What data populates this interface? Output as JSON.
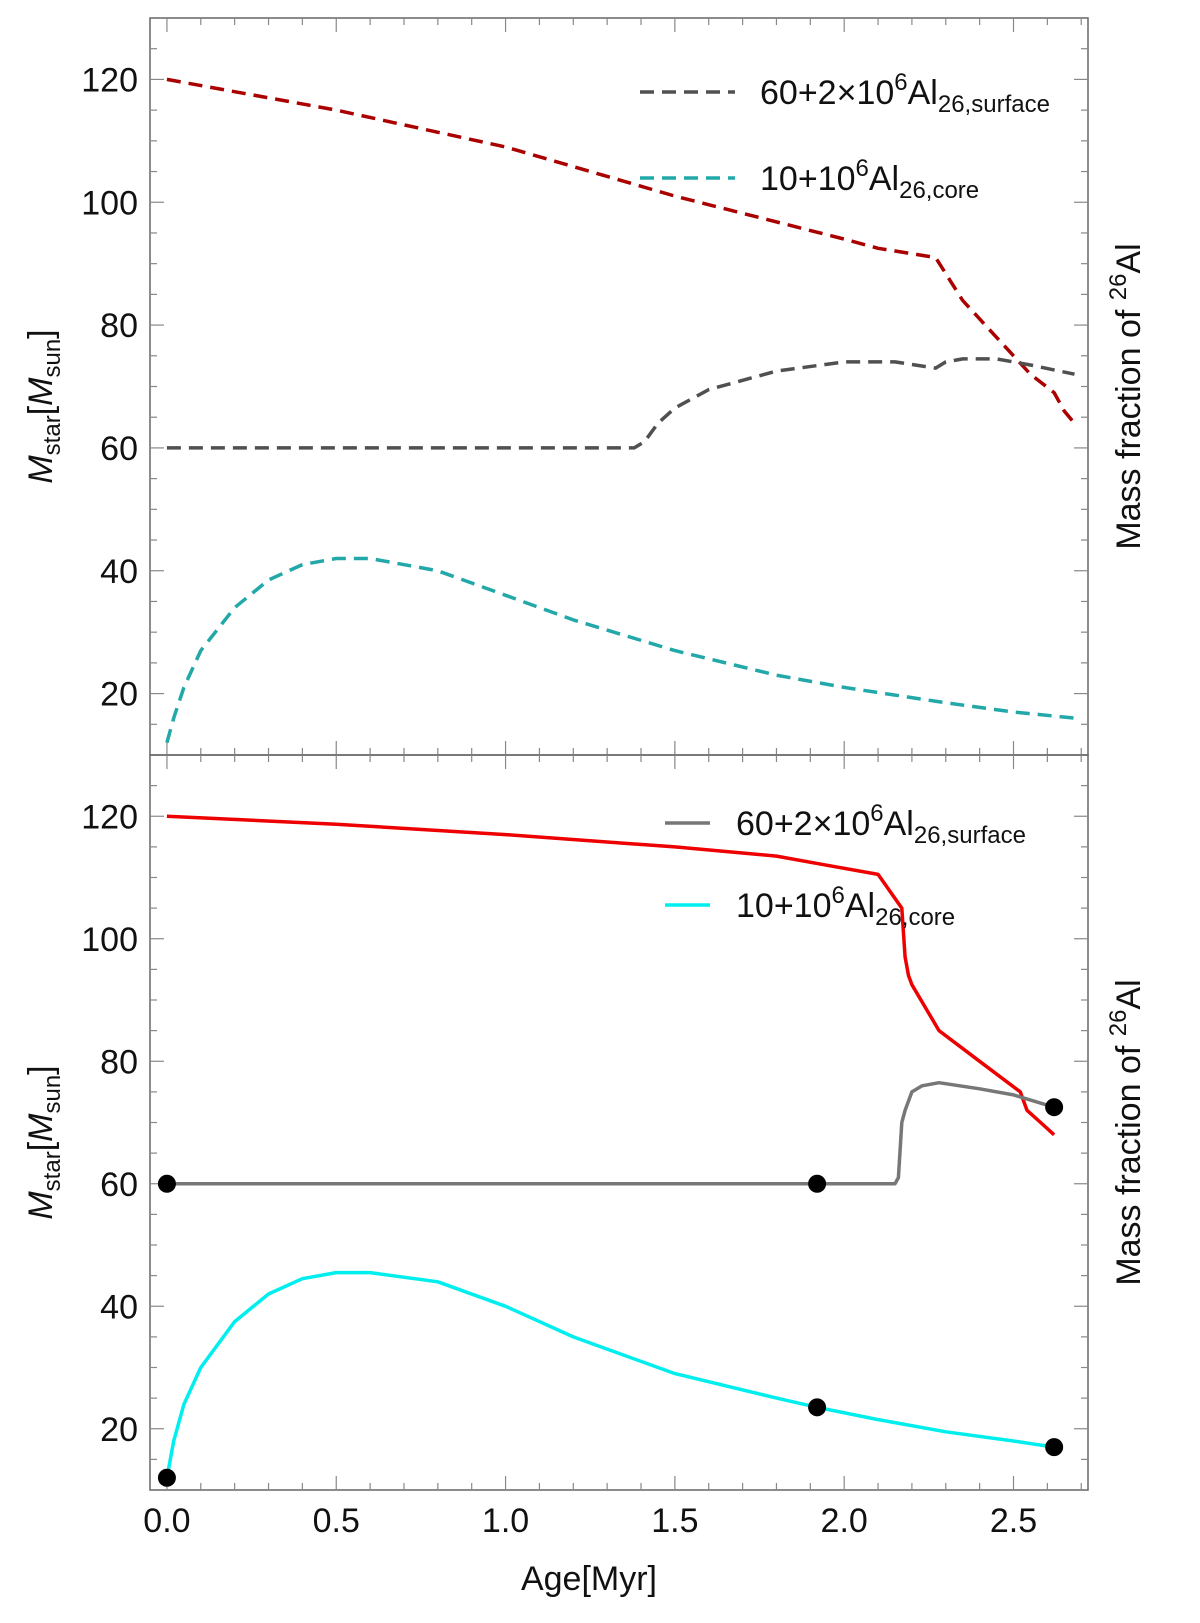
{
  "chart_data": [
    {
      "type": "line",
      "panel": "top",
      "line_style": "dashed",
      "xlabel": "Age[Myr]",
      "ylabel": {
        "base": "M",
        "sub": "star",
        "open": "[",
        "unit": "M",
        "unit_sub": "sun",
        "close": "]"
      },
      "right_label": {
        "pre": "Mass fraction of ",
        "sup": "26",
        "post": "Al"
      },
      "xlim": [
        -0.05,
        2.72
      ],
      "ylim": [
        10,
        130
      ],
      "yticks": [
        20,
        40,
        60,
        80,
        100,
        120
      ],
      "ytick_labels": [
        "20",
        "40",
        "60",
        "80",
        "100",
        "120"
      ],
      "legend": [
        {
          "series": "surface",
          "pre": "60+2×10",
          "sup": "6",
          "mid": "Al",
          "sub": "26,surface"
        },
        {
          "series": "core",
          "pre": "10+10",
          "sup": "6",
          "mid": "Al",
          "sub": "26,core"
        }
      ],
      "series": [
        {
          "name": "mass",
          "color": "#aa0000",
          "x": [
            0.0,
            0.5,
            1.0,
            1.5,
            2.0,
            2.1,
            2.27,
            2.35,
            2.45,
            2.55,
            2.62,
            2.65,
            2.68
          ],
          "y": [
            120,
            115,
            109,
            101,
            94,
            92.5,
            91,
            84,
            78,
            72,
            69,
            66,
            64
          ]
        },
        {
          "name": "surface",
          "color": "#505050",
          "x": [
            0.0,
            1.38,
            1.41,
            1.45,
            1.5,
            1.6,
            1.8,
            2.0,
            2.15,
            2.27,
            2.3,
            2.35,
            2.45,
            2.55,
            2.68
          ],
          "y": [
            60,
            60,
            61,
            64,
            66.5,
            69.5,
            72.5,
            74,
            74,
            73,
            74,
            74.5,
            74.5,
            73.5,
            72
          ]
        },
        {
          "name": "core",
          "color": "#22a8a8",
          "x": [
            0.0,
            0.02,
            0.05,
            0.1,
            0.2,
            0.3,
            0.4,
            0.5,
            0.6,
            0.8,
            1.0,
            1.2,
            1.5,
            1.8,
            2.0,
            2.3,
            2.5,
            2.68
          ],
          "y": [
            12,
            16,
            21,
            27,
            34,
            38.5,
            41,
            42,
            42,
            40,
            36,
            32,
            27,
            23,
            21,
            18.5,
            17,
            16
          ]
        }
      ],
      "points": []
    },
    {
      "type": "line",
      "panel": "bottom",
      "line_style": "solid",
      "xlabel": "Age[Myr]",
      "ylabel": {
        "base": "M",
        "sub": "star",
        "open": "[",
        "unit": "M",
        "unit_sub": "sun",
        "close": "]"
      },
      "right_label": {
        "pre": "Mass fraction of ",
        "sup": "26",
        "post": "Al"
      },
      "xlim": [
        -0.05,
        2.72
      ],
      "ylim": [
        10,
        130
      ],
      "yticks": [
        20,
        40,
        60,
        80,
        100,
        120
      ],
      "ytick_labels": [
        "20",
        "40",
        "60",
        "80",
        "100",
        "120"
      ],
      "xticks": [
        0.0,
        0.5,
        1.0,
        1.5,
        2.0,
        2.5
      ],
      "xtick_labels": [
        "0.0",
        "0.5",
        "1.0",
        "1.5",
        "2.0",
        "2.5"
      ],
      "legend": [
        {
          "series": "surface",
          "pre": "60+2×10",
          "sup": "6",
          "mid": "Al",
          "sub": "26,surface"
        },
        {
          "series": "core",
          "pre": "10+10",
          "sup": "6",
          "mid": "Al",
          "sub": "26,core"
        }
      ],
      "series": [
        {
          "name": "mass",
          "color": "#ee0000",
          "x": [
            0.0,
            0.5,
            1.0,
            1.5,
            1.8,
            1.95,
            2.1,
            2.17,
            2.18,
            2.19,
            2.2,
            2.28,
            2.4,
            2.52,
            2.54,
            2.58,
            2.62
          ],
          "y": [
            120,
            118.7,
            117,
            115,
            113.5,
            112,
            110.5,
            105,
            97,
            94,
            92.5,
            85,
            80,
            75,
            72,
            70,
            68
          ]
        },
        {
          "name": "surface",
          "color": "#777777",
          "x": [
            0.0,
            1.92,
            2.15,
            2.16,
            2.17,
            2.18,
            2.2,
            2.23,
            2.28,
            2.4,
            2.5,
            2.62
          ],
          "y": [
            60,
            60,
            60,
            61,
            70,
            72,
            75,
            76,
            76.5,
            75.5,
            74.5,
            72.5
          ]
        },
        {
          "name": "core",
          "color": "#00eeee",
          "x": [
            0.0,
            0.02,
            0.05,
            0.1,
            0.2,
            0.3,
            0.4,
            0.5,
            0.6,
            0.8,
            1.0,
            1.2,
            1.5,
            1.8,
            1.92,
            2.1,
            2.3,
            2.5,
            2.62
          ],
          "y": [
            12,
            18,
            24,
            30,
            37.5,
            42,
            44.5,
            45.5,
            45.5,
            44,
            40,
            35,
            29,
            25,
            23.5,
            21.5,
            19.5,
            18,
            17
          ]
        }
      ],
      "points": [
        {
          "x": 0.0,
          "y": 60
        },
        {
          "x": 1.92,
          "y": 60
        },
        {
          "x": 2.62,
          "y": 72.5
        },
        {
          "x": 0.0,
          "y": 12
        },
        {
          "x": 1.92,
          "y": 23.5
        },
        {
          "x": 2.62,
          "y": 17
        }
      ]
    }
  ]
}
